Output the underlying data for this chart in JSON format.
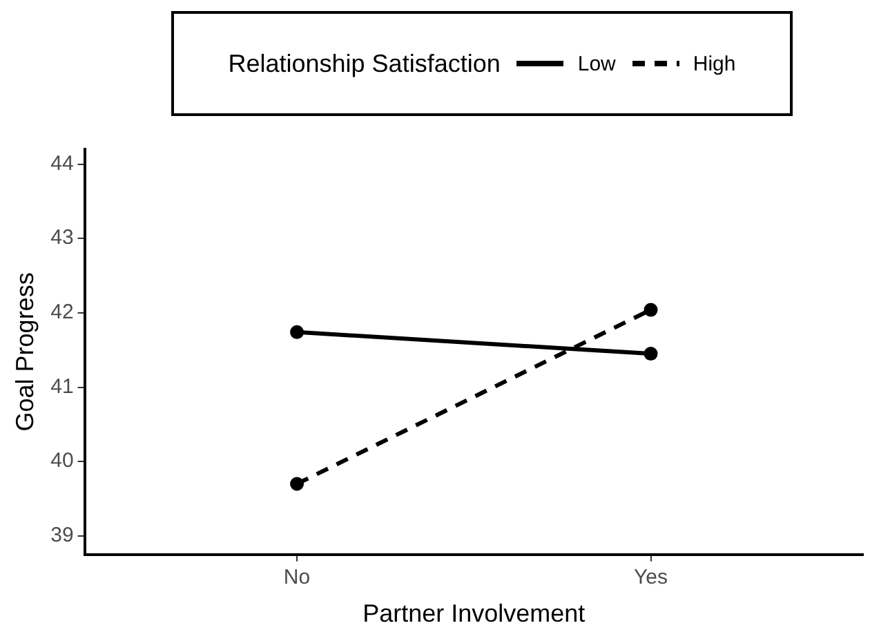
{
  "chart_data": {
    "type": "line",
    "xlabel": "Partner Involvement",
    "ylabel": "Goal Progress",
    "legend_title": "Relationship Satisfaction",
    "categories": [
      "No",
      "Yes"
    ],
    "series": [
      {
        "name": "Low",
        "color": "#000000",
        "values": [
          41.74,
          41.45
        ],
        "line_style": "solid"
      },
      {
        "name": "High",
        "color": "#000000",
        "values": [
          39.7,
          42.04
        ],
        "line_style": "dashed"
      }
    ],
    "ylim": [
      38.75,
      44.2
    ],
    "yticks": [
      39,
      40,
      41,
      42,
      43,
      44
    ],
    "grid": false,
    "legend": "top",
    "marker": "circle"
  }
}
